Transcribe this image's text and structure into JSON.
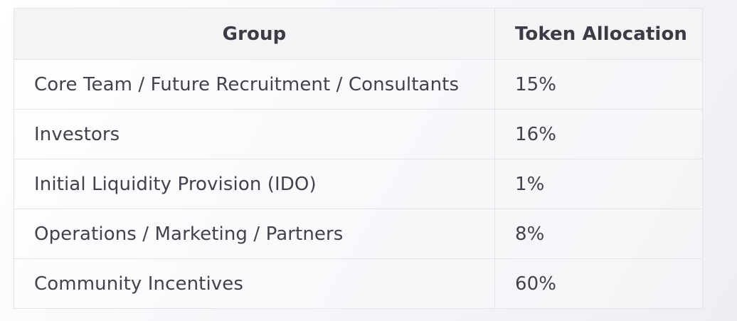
{
  "table": {
    "headers": {
      "group": "Group",
      "allocation": "Token Allocation"
    },
    "rows": [
      {
        "group": "Core Team / Future Recruitment / Consultants",
        "allocation": "15%"
      },
      {
        "group": "Investors",
        "allocation": "16%"
      },
      {
        "group": "Initial Liquidity Provision (IDO)",
        "allocation": "1%"
      },
      {
        "group": "Operations / Marketing / Partners",
        "allocation": "8%"
      },
      {
        "group": "Community Incentives",
        "allocation": "60%"
      }
    ]
  }
}
